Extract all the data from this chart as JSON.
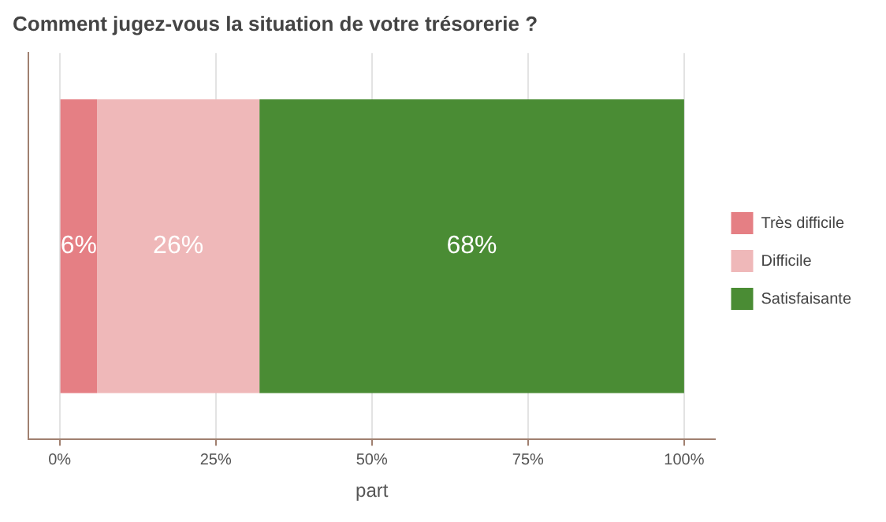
{
  "chart_data": {
    "type": "bar",
    "orientation": "horizontal",
    "stacked": true,
    "title": "Comment jugez-vous la situation de votre trésorerie ?",
    "xlabel": "part",
    "categories": [
      null
    ],
    "series": [
      {
        "name": "Très difficile",
        "color": "#e57f84",
        "values": [
          6
        ],
        "value_labels": [
          "6%"
        ]
      },
      {
        "name": "Difficile",
        "color": "#efb8b9",
        "values": [
          26
        ],
        "value_labels": [
          "26%"
        ]
      },
      {
        "name": "Satisfaisante",
        "color": "#4a8c34",
        "values": [
          68
        ],
        "value_labels": [
          "68%"
        ]
      }
    ],
    "xlim": [
      -5,
      105
    ],
    "xticks": [
      {
        "value": 0,
        "label": "0%"
      },
      {
        "value": 25,
        "label": "25%"
      },
      {
        "value": 50,
        "label": "50%"
      },
      {
        "value": 75,
        "label": "75%"
      },
      {
        "value": 100,
        "label": "100%"
      }
    ],
    "grid": "x",
    "legend": "right"
  }
}
